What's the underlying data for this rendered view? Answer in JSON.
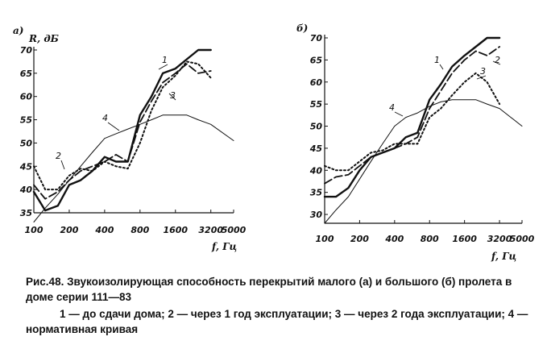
{
  "chart_data": [
    {
      "type": "line",
      "panel_label": "а)",
      "ylabel": "R, дБ",
      "xlabel": "f, Гц",
      "x_ticks": [
        "100",
        "200",
        "400",
        "800",
        "1600",
        "3200",
        "5000"
      ],
      "y_ticks": [
        "35",
        "40",
        "45",
        "50",
        "55",
        "60",
        "65",
        "70"
      ],
      "x_scale": "log",
      "xlim": [
        100,
        5000
      ],
      "ylim": [
        35,
        70
      ],
      "series": [
        {
          "name": "1",
          "x": [
            100,
            125,
            160,
            200,
            250,
            315,
            400,
            500,
            630,
            800,
            1000,
            1250,
            1600,
            2000,
            2500,
            3200
          ],
          "values": [
            39.5,
            35.5,
            36.5,
            41,
            42,
            44,
            47,
            46,
            46,
            56,
            60,
            65,
            66,
            68,
            70,
            70
          ]
        },
        {
          "name": "2",
          "x": [
            100,
            125,
            160,
            200,
            250,
            315,
            400,
            500,
            630,
            800,
            1000,
            1250,
            1600,
            2000,
            2500,
            3200
          ],
          "values": [
            41,
            38,
            39.5,
            42,
            44,
            45,
            46,
            47.5,
            46,
            54.5,
            59,
            63,
            65,
            67,
            65,
            65.5
          ]
        },
        {
          "name": "3",
          "x": [
            100,
            125,
            160,
            200,
            250,
            315,
            400,
            500,
            630,
            800,
            1000,
            1250,
            1600,
            2000,
            2500,
            3200
          ],
          "values": [
            45,
            40,
            40,
            43,
            44.5,
            44,
            46,
            45,
            44.5,
            50,
            57,
            62,
            64.5,
            67.5,
            67,
            64
          ]
        },
        {
          "name": "4",
          "x": [
            100,
            125,
            160,
            200,
            250,
            315,
            400,
            500,
            630,
            800,
            1000,
            1250,
            1600,
            2000,
            2500,
            3200,
            5000
          ],
          "values": [
            33,
            36,
            39,
            42,
            45,
            48,
            51,
            52,
            53,
            54,
            55,
            56,
            56,
            56,
            55,
            54,
            50.5
          ]
        }
      ],
      "curve_labels": [
        "1",
        "2",
        "3",
        "4"
      ]
    },
    {
      "type": "line",
      "panel_label": "б)",
      "xlabel": "f, Гц",
      "x_ticks": [
        "100",
        "200",
        "400",
        "800",
        "1600",
        "3200",
        "5000"
      ],
      "y_ticks": [
        "30",
        "35",
        "40",
        "45",
        "50",
        "55",
        "60",
        "65",
        "70"
      ],
      "x_scale": "log",
      "xlim": [
        100,
        5000
      ],
      "ylim": [
        28,
        70
      ],
      "series": [
        {
          "name": "1",
          "x": [
            100,
            125,
            160,
            200,
            250,
            315,
            400,
            500,
            630,
            800,
            1000,
            1250,
            1600,
            2000,
            2500,
            3200
          ],
          "values": [
            34,
            34,
            36,
            40,
            43,
            44,
            45,
            47.5,
            48.5,
            56,
            59.5,
            63.5,
            66,
            68,
            70,
            70
          ]
        },
        {
          "name": "2",
          "x": [
            100,
            125,
            160,
            200,
            250,
            315,
            400,
            500,
            630,
            800,
            1000,
            1250,
            1600,
            2000,
            2500,
            3200
          ],
          "values": [
            37,
            38.5,
            39,
            41,
            43,
            44,
            45,
            46,
            47.5,
            54,
            58,
            62,
            65,
            67,
            66,
            68
          ]
        },
        {
          "name": "3",
          "x": [
            100,
            125,
            160,
            200,
            250,
            315,
            400,
            500,
            630,
            800,
            1000,
            1250,
            1600,
            2000,
            2500,
            3200
          ],
          "values": [
            41,
            40,
            40,
            42,
            44,
            44.5,
            46,
            46,
            46,
            52,
            54,
            57,
            60,
            62,
            60,
            55
          ]
        },
        {
          "name": "4",
          "x": [
            100,
            125,
            160,
            200,
            250,
            315,
            400,
            500,
            630,
            800,
            1000,
            1250,
            1600,
            2000,
            2500,
            3200,
            5000
          ],
          "values": [
            28,
            31,
            34,
            38,
            42,
            46,
            50,
            52,
            53,
            54.5,
            55.5,
            56,
            56,
            56,
            55,
            54,
            50
          ]
        }
      ],
      "curve_labels": [
        "1",
        "2",
        "3",
        "4"
      ]
    }
  ],
  "caption": {
    "line1": "Рис.48. Звукоизолирующая способность перекрытий малого (а) и большого (б) пролета в доме серии 111—83",
    "line2": "1 — до сдачи дома; 2 — через 1 год эксплуатации; 3 — через 2 года эксплуатации; 4 — нормативная кривая"
  }
}
